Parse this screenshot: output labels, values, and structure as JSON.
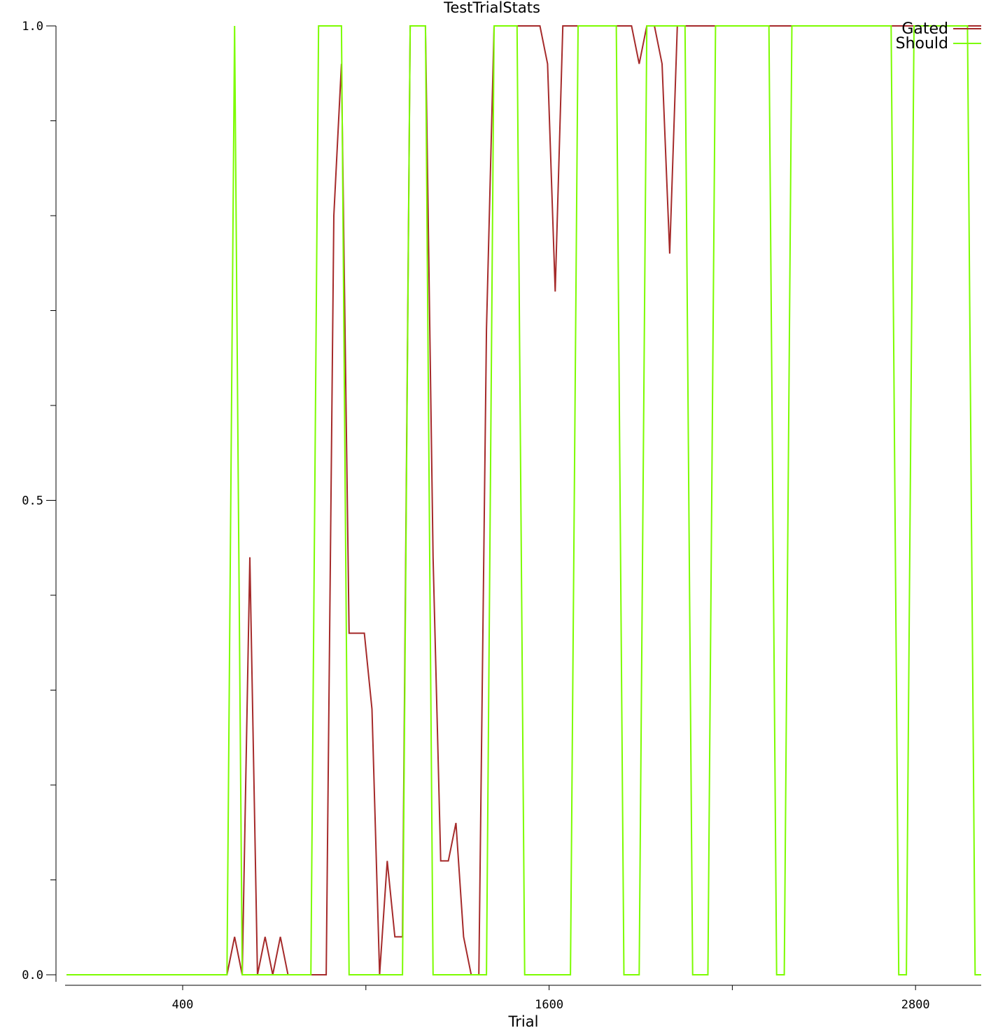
{
  "chart_data": {
    "type": "line",
    "title": "TestTrialStats",
    "xlabel": "Trial",
    "ylabel": "",
    "xlim": [
      15,
      3015
    ],
    "ylim": [
      0,
      1
    ],
    "x_ticks": [
      400,
      1000,
      1600,
      2200,
      2800
    ],
    "x_tick_labels": [
      "400",
      "",
      "1600",
      "",
      "2800"
    ],
    "y_ticks": [
      0,
      0.1,
      0.2,
      0.3,
      0.4,
      0.5,
      0.6,
      0.7,
      0.8,
      0.9,
      1.0
    ],
    "y_tick_labels": [
      "0.0",
      "",
      "",
      "",
      "",
      "0.5",
      "",
      "",
      "",
      "",
      "1.0"
    ],
    "legend_position": "top-right",
    "grid": false,
    "x": [
      20,
      45,
      70,
      95,
      120,
      145,
      170,
      195,
      220,
      245,
      270,
      295,
      320,
      345,
      370,
      395,
      420,
      445,
      470,
      495,
      520,
      545,
      570,
      595,
      620,
      645,
      670,
      695,
      720,
      745,
      770,
      795,
      820,
      845,
      870,
      895,
      920,
      945,
      970,
      995,
      1020,
      1045,
      1070,
      1095,
      1120,
      1145,
      1170,
      1195,
      1220,
      1245,
      1270,
      1295,
      1320,
      1345,
      1370,
      1395,
      1420,
      1445,
      1470,
      1495,
      1520,
      1545,
      1570,
      1595,
      1620,
      1645,
      1670,
      1695,
      1720,
      1745,
      1770,
      1795,
      1820,
      1845,
      1870,
      1895,
      1920,
      1945,
      1970,
      1995,
      2020,
      2045,
      2070,
      2095,
      2120,
      2145,
      2170,
      2195,
      2220,
      2245,
      2270,
      2295,
      2320,
      2345,
      2370,
      2395,
      2420,
      2445,
      2470,
      2495,
      2520,
      2545,
      2570,
      2595,
      2620,
      2645,
      2670,
      2695,
      2720,
      2745,
      2770,
      2795,
      2820,
      2845,
      2870,
      2895,
      2920,
      2945,
      2970,
      2995,
      3015
    ],
    "series": [
      {
        "name": "Gated",
        "color": "#a52a2a",
        "values": [
          0,
          0,
          0,
          0,
          0,
          0,
          0,
          0,
          0,
          0,
          0,
          0,
          0,
          0,
          0,
          0,
          0,
          0,
          0,
          0,
          0,
          0,
          0.04,
          0,
          0.44,
          0,
          0.04,
          0,
          0.04,
          0,
          0,
          0,
          0,
          0,
          0,
          0.8,
          0.96,
          0.36,
          0.36,
          0.36,
          0.28,
          0,
          0.12,
          0.04,
          0.04,
          1,
          1,
          1,
          0.44,
          0.12,
          0.12,
          0.16,
          0.04,
          0,
          0,
          0.68,
          1,
          1,
          1,
          1,
          1,
          1,
          1,
          0.96,
          0.72,
          1,
          1,
          1,
          1,
          1,
          1,
          1,
          1,
          1,
          1,
          0.96,
          1,
          1,
          0.96,
          0.76,
          1,
          1,
          1,
          1,
          1,
          1,
          1,
          1,
          1,
          1,
          1,
          1,
          1,
          1,
          1,
          1,
          1,
          1,
          1,
          1,
          1,
          1,
          1,
          1,
          1,
          1,
          1,
          1,
          1,
          1,
          1,
          1,
          1,
          1,
          1,
          1,
          1,
          1,
          1,
          1,
          1
        ]
      },
      {
        "name": "Should",
        "color": "#7cfc00",
        "values": [
          0,
          0,
          0,
          0,
          0,
          0,
          0,
          0,
          0,
          0,
          0,
          0,
          0,
          0,
          0,
          0,
          0,
          0,
          0,
          0,
          0,
          0,
          1,
          0,
          0,
          0,
          0,
          0,
          0,
          0,
          0,
          0,
          0,
          1,
          1,
          1,
          1,
          0,
          0,
          0,
          0,
          0,
          0,
          0,
          0,
          1,
          1,
          1,
          0,
          0,
          0,
          0,
          0,
          0,
          0,
          0,
          1,
          1,
          1,
          1,
          0,
          0,
          0,
          0,
          0,
          0,
          0,
          1,
          1,
          1,
          1,
          1,
          1,
          0,
          0,
          0,
          1,
          1,
          1,
          1,
          1,
          1,
          0,
          0,
          0,
          1,
          1,
          1,
          1,
          1,
          1,
          1,
          1,
          0,
          0,
          1,
          1,
          1,
          1,
          1,
          1,
          1,
          1,
          1,
          1,
          1,
          1,
          1,
          1,
          0,
          0,
          1,
          1,
          1,
          1,
          1,
          1,
          1,
          1,
          0,
          0
        ]
      }
    ]
  }
}
